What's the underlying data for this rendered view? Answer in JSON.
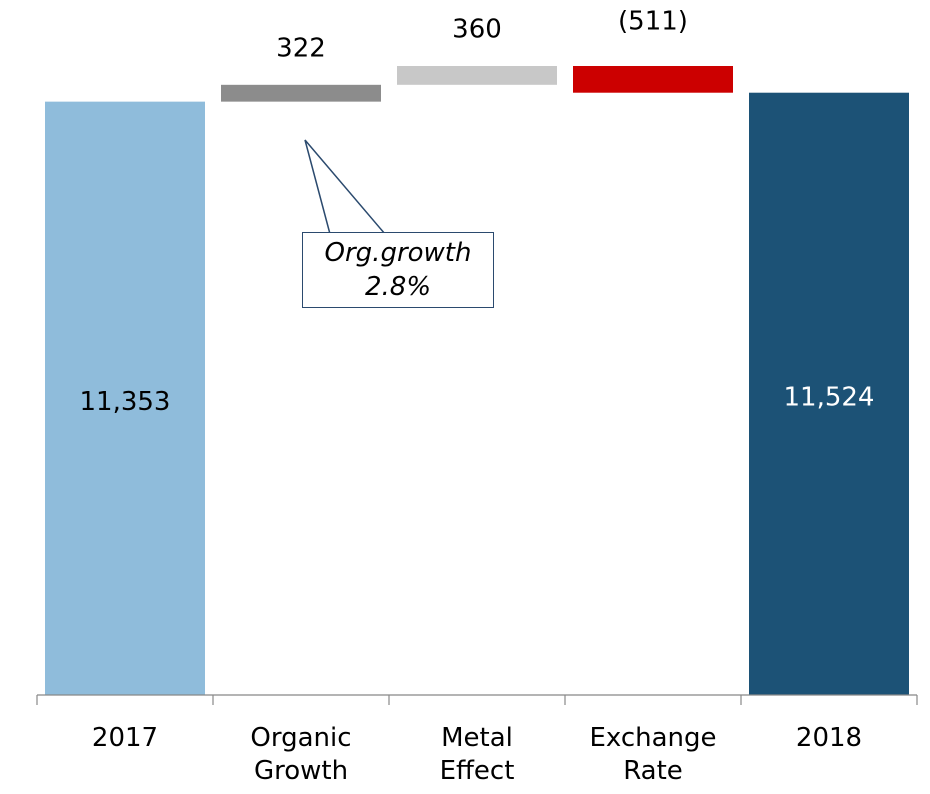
{
  "chart_data": {
    "type": "waterfall",
    "categories": [
      "2017",
      "Organic Growth",
      "Metal Effect",
      "Exchange Rate",
      "2018"
    ],
    "values": [
      11353,
      322,
      360,
      -511,
      11524
    ],
    "value_labels": [
      "11,353",
      "322",
      "360",
      "(511)",
      "11,524"
    ],
    "colors": [
      "#8fbcdb",
      "#8c8c8c",
      "#c8c8c8",
      "#cc0000",
      "#1c5276"
    ],
    "annotations": [
      {
        "text": "Org.growth 2.8%"
      }
    ]
  }
}
